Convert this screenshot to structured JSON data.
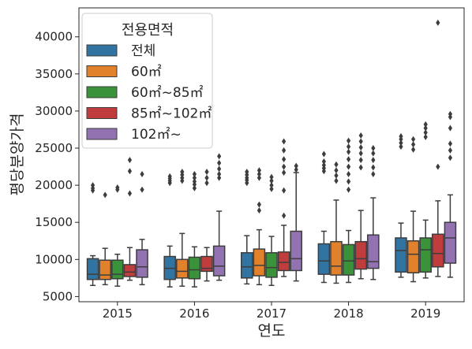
{
  "chart_data": {
    "type": "box",
    "title": "",
    "xlabel": "연도",
    "ylabel": "평당분양가격",
    "categories": [
      "2015",
      "2016",
      "2017",
      "2018",
      "2019"
    ],
    "yticks": [
      5000,
      10000,
      15000,
      20000,
      25000,
      30000,
      35000,
      40000
    ],
    "ylim": [
      4300,
      43900
    ],
    "grid": false,
    "legend": {
      "title": "전용면적",
      "position": "top-left"
    },
    "series": [
      {
        "name": "전체",
        "color": "#3274a1",
        "boxes": [
          {
            "whislo": 6500,
            "q1": 7300,
            "med": 8000,
            "q3": 10100,
            "whishi": 10500,
            "fliers": [
              19300,
              19600,
              20000
            ]
          },
          {
            "whislo": 6300,
            "q1": 7300,
            "med": 8800,
            "q3": 10400,
            "whishi": 11800,
            "fliers": [
              20300,
              20600,
              20900,
              21200
            ]
          },
          {
            "whislo": 6700,
            "q1": 7500,
            "med": 9000,
            "q3": 10900,
            "whishi": 13200,
            "fliers": [
              20300,
              20700,
              21000,
              21400,
              21800
            ]
          },
          {
            "whislo": 6900,
            "q1": 8000,
            "med": 9800,
            "q3": 12100,
            "whishi": 13800,
            "fliers": [
              21900,
              22300,
              22700,
              23200,
              24200
            ]
          },
          {
            "whislo": 7600,
            "q1": 8300,
            "med": 11200,
            "q3": 12900,
            "whishi": 14900,
            "fliers": [
              25200,
              25700,
              26200,
              26600
            ]
          }
        ]
      },
      {
        "name": "60㎡",
        "color": "#e1812c",
        "boxes": [
          {
            "whislo": 6600,
            "q1": 7300,
            "med": 7900,
            "q3": 9900,
            "whishi": 11500,
            "fliers": [
              18700
            ]
          },
          {
            "whislo": 6400,
            "q1": 7500,
            "med": 8400,
            "q3": 10000,
            "whishi": 13500,
            "fliers": [
              20600,
              21000,
              21400,
              21800
            ]
          },
          {
            "whislo": 6600,
            "q1": 7800,
            "med": 9200,
            "q3": 11400,
            "whishi": 14000,
            "fliers": [
              16600,
              17400,
              21000,
              21500,
              22000
            ]
          },
          {
            "whislo": 6800,
            "q1": 7900,
            "med": 9100,
            "q3": 12400,
            "whishi": 18000,
            "fliers": [
              20600,
              21300,
              22000,
              22800
            ]
          },
          {
            "whislo": 7000,
            "q1": 8200,
            "med": 10700,
            "q3": 12500,
            "whishi": 16500,
            "fliers": [
              24800,
              25500,
              26200
            ]
          }
        ]
      },
      {
        "name": "60㎡~85㎡",
        "color": "#3a923a",
        "boxes": [
          {
            "whislo": 6400,
            "q1": 7400,
            "med": 8000,
            "q3": 9900,
            "whishi": 10700,
            "fliers": [
              19400,
              19700
            ]
          },
          {
            "whislo": 6300,
            "q1": 7400,
            "med": 8600,
            "q3": 10300,
            "whishi": 11700,
            "fliers": [
              19600,
              20100,
              20500,
              21000,
              21500
            ]
          },
          {
            "whislo": 6500,
            "q1": 7600,
            "med": 8900,
            "q3": 10900,
            "whishi": 13100,
            "fliers": [
              19500,
              20000,
              20600,
              21100
            ]
          },
          {
            "whislo": 6900,
            "q1": 7900,
            "med": 9800,
            "q3": 12000,
            "whishi": 13900,
            "fliers": [
              19400,
              20500,
              21500,
              22500,
              23500,
              24500,
              25200,
              26000
            ]
          },
          {
            "whislo": 7500,
            "q1": 8300,
            "med": 11300,
            "q3": 12900,
            "whishi": 15300,
            "fliers": [
              26500,
              27100,
              27700,
              28200
            ]
          }
        ]
      },
      {
        "name": "85㎡~102㎡",
        "color": "#c03d3e",
        "boxes": [
          {
            "whislo": 7200,
            "q1": 7700,
            "med": 8300,
            "q3": 9300,
            "whishi": 11600,
            "fliers": [
              18900,
              21900,
              23400
            ]
          },
          {
            "whislo": 7100,
            "q1": 8400,
            "med": 8800,
            "q3": 10400,
            "whishi": 11600,
            "fliers": [
              20300,
              21000,
              21800
            ]
          },
          {
            "whislo": 7700,
            "q1": 8500,
            "med": 9600,
            "q3": 11000,
            "whishi": 14600,
            "fliers": [
              15900,
              19300,
              21700,
              22500,
              23500,
              24700,
              25900
            ]
          },
          {
            "whislo": 7400,
            "q1": 8700,
            "med": 10100,
            "q3": 12400,
            "whishi": 16600,
            "fliers": [
              22400,
              23400,
              24300,
              25100,
              25900,
              26700
            ]
          },
          {
            "whislo": 7700,
            "q1": 9000,
            "med": 10800,
            "q3": 13400,
            "whishi": 17900,
            "fliers": [
              22500,
              41900
            ]
          }
        ]
      },
      {
        "name": "102㎡~",
        "color": "#9372b2",
        "boxes": [
          {
            "whislo": 6600,
            "q1": 7600,
            "med": 9000,
            "q3": 11300,
            "whishi": 12700,
            "fliers": [
              19400,
              21500
            ]
          },
          {
            "whislo": 7200,
            "q1": 7800,
            "med": 9100,
            "q3": 11800,
            "whishi": 16500,
            "fliers": [
              21000,
              21500,
              22200,
              23000,
              23900
            ]
          },
          {
            "whislo": 7100,
            "q1": 8500,
            "med": 10100,
            "q3": 13800,
            "whishi": 21700,
            "fliers": [
              22100,
              22600
            ]
          },
          {
            "whislo": 7300,
            "q1": 8800,
            "med": 9700,
            "q3": 13300,
            "whishi": 18300,
            "fliers": [
              21500,
              22400,
              23400,
              24300,
              25000
            ]
          },
          {
            "whislo": 7600,
            "q1": 9500,
            "med": 12900,
            "q3": 15000,
            "whishi": 18700,
            "fliers": [
              23700,
              24700,
              25600,
              27700,
              29200,
              29600
            ]
          }
        ]
      }
    ]
  }
}
